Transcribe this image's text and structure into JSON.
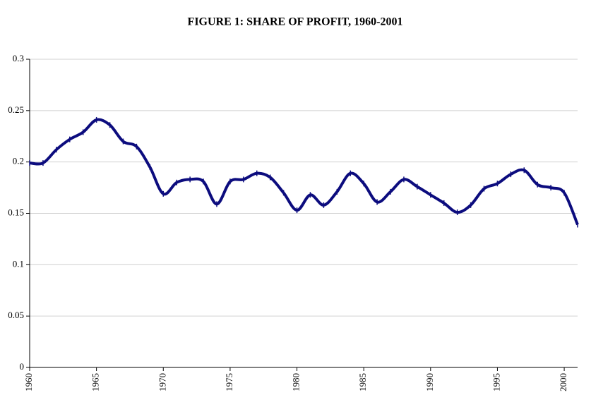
{
  "chart_data": {
    "type": "line",
    "title": "FIGURE 1: SHARE OF PROFIT, 1960-2001",
    "x": [
      1960,
      1961,
      1962,
      1963,
      1964,
      1965,
      1966,
      1967,
      1968,
      1969,
      1970,
      1971,
      1972,
      1973,
      1974,
      1975,
      1976,
      1977,
      1978,
      1979,
      1980,
      1981,
      1982,
      1983,
      1984,
      1985,
      1986,
      1987,
      1988,
      1989,
      1990,
      1991,
      1992,
      1993,
      1994,
      1995,
      1996,
      1997,
      1998,
      1999,
      2000,
      2001
    ],
    "series": [
      {
        "color": "#0c0c7e",
        "values": [
          0.199,
          0.199,
          0.212,
          0.222,
          0.229,
          0.241,
          0.236,
          0.22,
          0.215,
          0.195,
          0.169,
          0.18,
          0.183,
          0.181,
          0.159,
          0.181,
          0.183,
          0.189,
          0.185,
          0.17,
          0.153,
          0.168,
          0.158,
          0.171,
          0.189,
          0.179,
          0.161,
          0.171,
          0.183,
          0.176,
          0.168,
          0.16,
          0.151,
          0.158,
          0.174,
          0.179,
          0.188,
          0.192,
          0.178,
          0.175,
          0.17,
          0.139
        ]
      }
    ],
    "xlim": [
      1960,
      2001
    ],
    "xticks": [
      1960,
      1965,
      1970,
      1975,
      1980,
      1985,
      1990,
      1995,
      2000
    ],
    "ylim": [
      0,
      0.3
    ],
    "yticks": [
      0,
      0.05,
      0.1,
      0.15,
      0.2,
      0.25,
      0.3
    ],
    "grid": true
  }
}
